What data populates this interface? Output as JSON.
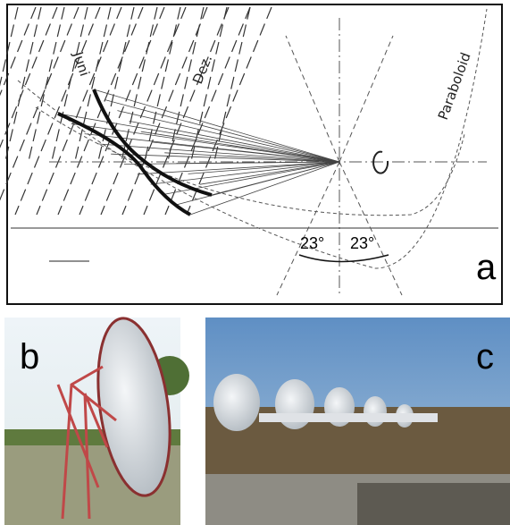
{
  "panel_a": {
    "label_juni": "Juni",
    "label_dez": "Dez.",
    "label_paraboloid": "Paraboloid",
    "angle_left": "23°",
    "angle_right": "23°",
    "tag": "a"
  },
  "panel_b": {
    "tag": "b"
  },
  "panel_c": {
    "tag": "c"
  }
}
